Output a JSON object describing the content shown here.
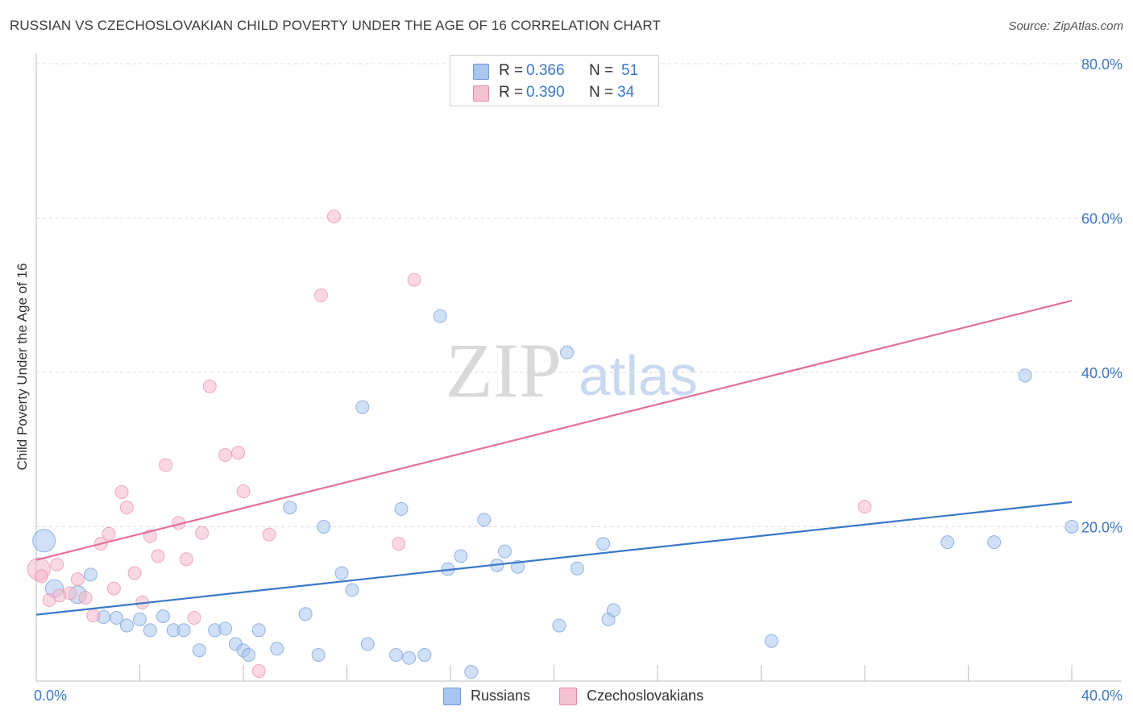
{
  "title": "RUSSIAN VS CZECHOSLOVAKIAN CHILD POVERTY UNDER THE AGE OF 16 CORRELATION CHART",
  "source": "Source: ZipAtlas.com",
  "watermark": {
    "zip": "ZIP",
    "atlas": "atlas"
  },
  "colors": {
    "blue": "#3a78c9",
    "blue_fill": "#a9c6ee",
    "pink": "#e3709a",
    "pink_fill": "#f6b8cb",
    "grid": "#dcdcdc",
    "tick_label": "#3a78c9"
  },
  "legend_top": {
    "russians": {
      "r_label": "R =",
      "r_value": "0.366",
      "n_label": "N =",
      "n_value": "51"
    },
    "czechoslovakians": {
      "r_label": "R =",
      "r_value": "0.390",
      "n_label": "N =",
      "n_value": "34"
    }
  },
  "legend_bottom": {
    "russians": "Russians",
    "czechoslovakians": "Czechoslovakians"
  },
  "chart_data": {
    "type": "scatter",
    "title": "RUSSIAN VS CZECHOSLOVAKIAN CHILD POVERTY UNDER THE AGE OF 16 CORRELATION CHART",
    "xlabel": "",
    "ylabel": "Child Poverty Under the Age of 16",
    "xlim": [
      0,
      40
    ],
    "ylim": [
      0,
      80
    ],
    "x_tick_labels": [
      "0.0%",
      "40.0%"
    ],
    "y_tick_labels": [
      "20.0%",
      "40.0%",
      "60.0%",
      "80.0%"
    ],
    "y_ticks": [
      20,
      40,
      60,
      80
    ],
    "grid": true,
    "series": [
      {
        "name": "Russians",
        "r": 0.366,
        "n": 51,
        "trend": {
          "x0": 0,
          "y0": 8.6,
          "x1": 40,
          "y1": 23.2
        },
        "points": [
          [
            0.3,
            18.2,
            "L"
          ],
          [
            0.7,
            12.0,
            "M"
          ],
          [
            1.6,
            11.2,
            "M"
          ],
          [
            2.1,
            13.8,
            "S"
          ],
          [
            2.6,
            8.3,
            "S"
          ],
          [
            3.1,
            8.2,
            "S"
          ],
          [
            3.5,
            7.2,
            "S"
          ],
          [
            4.0,
            8.0,
            "S"
          ],
          [
            4.4,
            6.6,
            "S"
          ],
          [
            4.9,
            8.4,
            "S"
          ],
          [
            5.3,
            6.6,
            "S"
          ],
          [
            5.7,
            6.6,
            "S"
          ],
          [
            6.3,
            4.0,
            "S"
          ],
          [
            6.9,
            6.6,
            "S"
          ],
          [
            7.3,
            6.8,
            "S"
          ],
          [
            7.7,
            4.8,
            "S"
          ],
          [
            8.0,
            4.0,
            "S"
          ],
          [
            8.2,
            3.4,
            "S"
          ],
          [
            8.6,
            6.6,
            "S"
          ],
          [
            9.3,
            4.2,
            "S"
          ],
          [
            9.8,
            22.5,
            "S"
          ],
          [
            10.4,
            8.7,
            "S"
          ],
          [
            10.9,
            3.4,
            "S"
          ],
          [
            11.1,
            20.0,
            "S"
          ],
          [
            11.8,
            14.0,
            "S"
          ],
          [
            12.2,
            11.8,
            "S"
          ],
          [
            12.6,
            35.5,
            "S"
          ],
          [
            12.8,
            4.8,
            "S"
          ],
          [
            13.9,
            3.4,
            "S"
          ],
          [
            14.1,
            22.3,
            "S"
          ],
          [
            14.4,
            3.0,
            "S"
          ],
          [
            15.0,
            3.4,
            "S"
          ],
          [
            15.6,
            47.3,
            "S"
          ],
          [
            15.9,
            14.5,
            "S"
          ],
          [
            16.4,
            16.2,
            "S"
          ],
          [
            16.8,
            1.2,
            "S"
          ],
          [
            17.3,
            20.9,
            "S"
          ],
          [
            17.8,
            15.0,
            "S"
          ],
          [
            18.1,
            16.8,
            "S"
          ],
          [
            18.6,
            14.8,
            "S"
          ],
          [
            20.2,
            7.2,
            "S"
          ],
          [
            20.5,
            42.6,
            "S"
          ],
          [
            20.9,
            14.6,
            "S"
          ],
          [
            21.9,
            17.8,
            "S"
          ],
          [
            22.1,
            8.0,
            "S"
          ],
          [
            22.3,
            9.2,
            "S"
          ],
          [
            28.4,
            5.2,
            "S"
          ],
          [
            35.2,
            18.0,
            "S"
          ],
          [
            37.0,
            18.0,
            "S"
          ],
          [
            38.2,
            39.6,
            "S"
          ],
          [
            40.0,
            20.0,
            "S"
          ]
        ]
      },
      {
        "name": "Czechoslovakians",
        "r": 0.39,
        "n": 34,
        "trend": {
          "x0": 0,
          "y0": 15.7,
          "x1": 40,
          "y1": 49.3
        },
        "points": [
          [
            0.1,
            14.5,
            "L"
          ],
          [
            0.5,
            10.5,
            "S"
          ],
          [
            0.8,
            15.1,
            "S"
          ],
          [
            0.9,
            11.1,
            "S"
          ],
          [
            1.3,
            11.4,
            "S"
          ],
          [
            1.6,
            13.2,
            "S"
          ],
          [
            1.9,
            10.8,
            "S"
          ],
          [
            2.2,
            8.5,
            "S"
          ],
          [
            2.5,
            17.8,
            "S"
          ],
          [
            2.8,
            19.1,
            "S"
          ],
          [
            3.0,
            12.0,
            "S"
          ],
          [
            3.3,
            24.5,
            "S"
          ],
          [
            3.5,
            22.5,
            "S"
          ],
          [
            3.8,
            14.0,
            "S"
          ],
          [
            4.1,
            10.2,
            "S"
          ],
          [
            4.4,
            18.8,
            "S"
          ],
          [
            4.7,
            16.2,
            "S"
          ],
          [
            5.0,
            28.0,
            "S"
          ],
          [
            5.5,
            20.5,
            "S"
          ],
          [
            5.8,
            15.8,
            "S"
          ],
          [
            6.1,
            8.2,
            "S"
          ],
          [
            6.4,
            19.2,
            "S"
          ],
          [
            6.7,
            38.2,
            "S"
          ],
          [
            7.3,
            29.3,
            "S"
          ],
          [
            7.8,
            29.6,
            "S"
          ],
          [
            8.0,
            24.6,
            "S"
          ],
          [
            8.6,
            1.3,
            "S"
          ],
          [
            9.0,
            19.0,
            "S"
          ],
          [
            11.0,
            50.0,
            "S"
          ],
          [
            11.5,
            60.2,
            "S"
          ],
          [
            14.0,
            17.8,
            "S"
          ],
          [
            14.6,
            52.0,
            "S"
          ],
          [
            32.0,
            22.6,
            "S"
          ],
          [
            0.2,
            13.6,
            "S"
          ]
        ]
      }
    ]
  }
}
